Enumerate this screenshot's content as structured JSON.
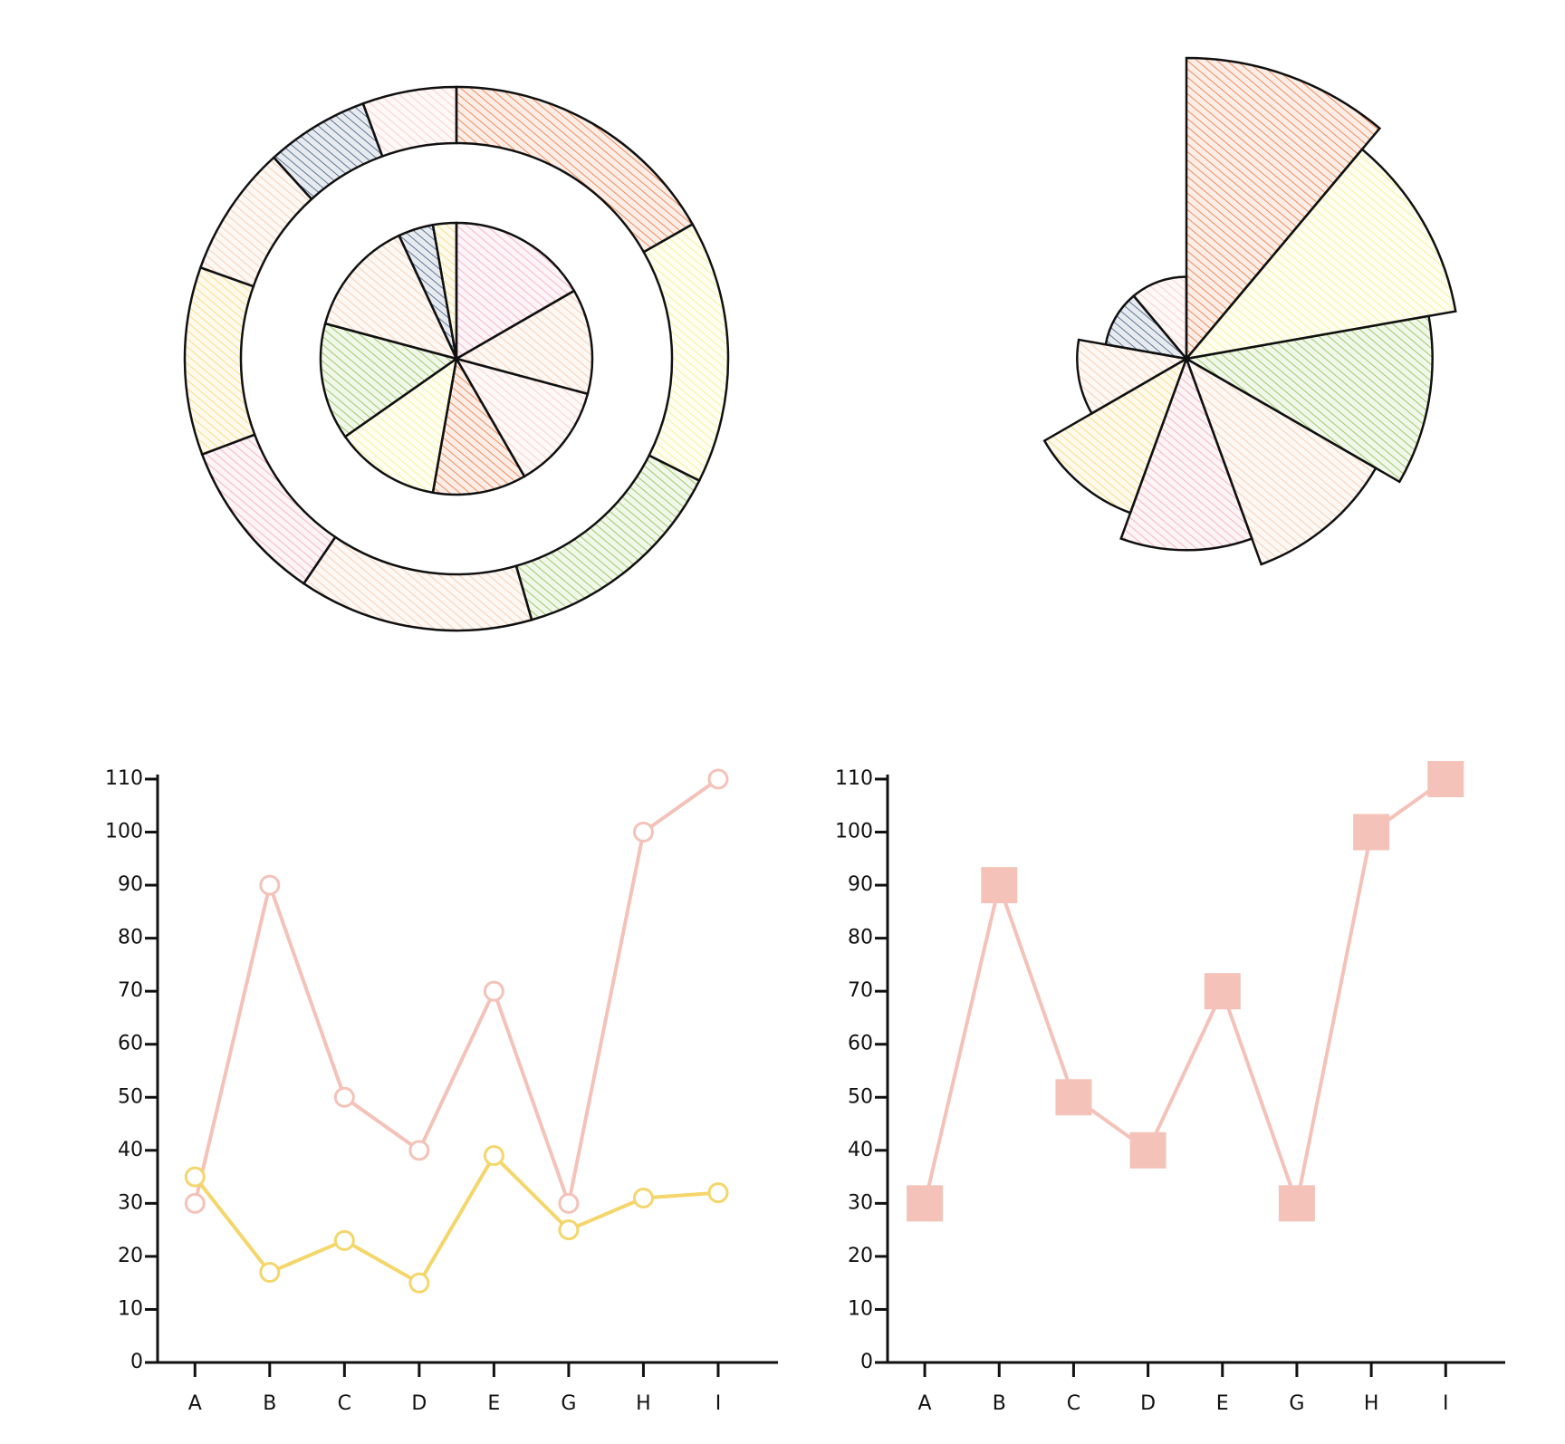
{
  "chart_data": [
    {
      "type": "pie",
      "series": [
        {
          "values": [
            60,
            45,
            45,
            40,
            45,
            50,
            50,
            15,
            10
          ],
          "colors": [
            "#f0a8c0",
            "#f4c6a8",
            "#f7c9c0",
            "#e8743b",
            "#f5f08a",
            "#8bbf4f",
            "#f4c6a8",
            "#3d5a80",
            "#f5d76e"
          ]
        },
        {
          "values": [
            60,
            56,
            47,
            50,
            35,
            40,
            28,
            22,
            20
          ],
          "colors": [
            "#e8743b",
            "#f5f08a",
            "#8bbf4f",
            "#f4c6a8",
            "#f0a8b8",
            "#f5d76e",
            "#f4c6a8",
            "#3d5a80",
            "#f7c9c0"
          ]
        }
      ]
    },
    {
      "type": "rose",
      "values": [
        110,
        100,
        90,
        80,
        70,
        60,
        40,
        30,
        30
      ],
      "colors": [
        "#e8743b",
        "#f5f08a",
        "#8bbf4f",
        "#f4c6a8",
        "#f0a8b8",
        "#f5d76e",
        "#f4c6a8",
        "#3d5a80",
        "#f7c9c0"
      ]
    },
    {
      "type": "line",
      "marker": "circle",
      "categories": [
        "A",
        "B",
        "C",
        "D",
        "E",
        "G",
        "H",
        "I"
      ],
      "series": [
        {
          "color": "#f4c2b8",
          "values": [
            30,
            90,
            50,
            40,
            70,
            30,
            100,
            110
          ]
        },
        {
          "color": "#f5d66a",
          "values": [
            35,
            17,
            23,
            15,
            39,
            25,
            31,
            32
          ]
        }
      ],
      "ylim": [
        0,
        110
      ],
      "yticks": [
        0,
        10,
        20,
        30,
        40,
        50,
        60,
        70,
        80,
        90,
        100,
        110
      ]
    },
    {
      "type": "line",
      "marker": "square",
      "categories": [
        "A",
        "B",
        "C",
        "D",
        "E",
        "G",
        "H",
        "I"
      ],
      "series": [
        {
          "color": "#f4c2b8",
          "values": [
            30,
            90,
            50,
            40,
            70,
            30,
            100,
            110
          ]
        }
      ],
      "ylim": [
        0,
        110
      ],
      "yticks": [
        0,
        10,
        20,
        30,
        40,
        50,
        60,
        70,
        80,
        90,
        100,
        110
      ]
    }
  ]
}
